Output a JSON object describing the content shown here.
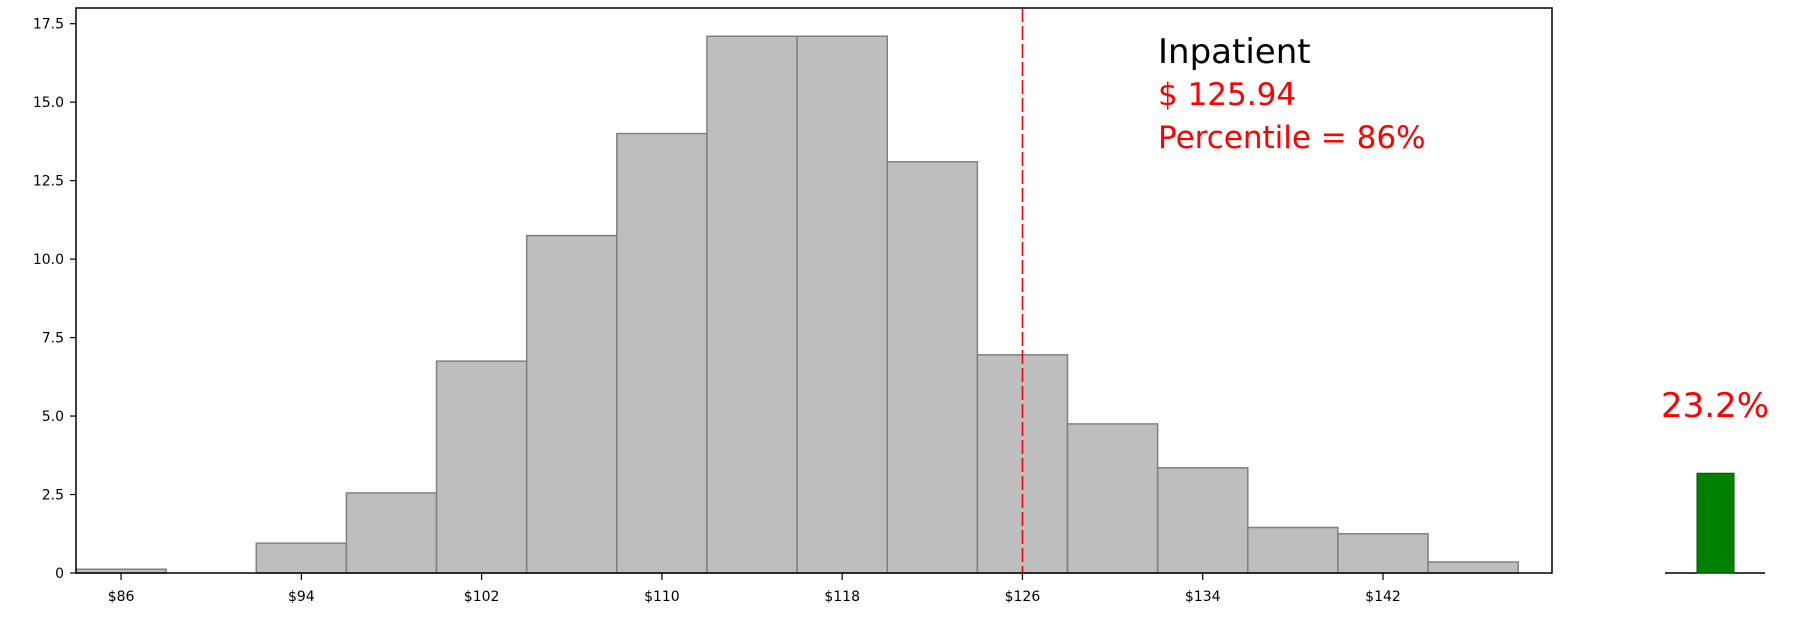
{
  "chart_data": [
    {
      "type": "bar",
      "chart": "histogram",
      "bins": [
        {
          "x0": 84,
          "x1": 88,
          "value": 0.12
        },
        {
          "x0": 88,
          "x1": 92,
          "value": 0
        },
        {
          "x0": 92,
          "x1": 96,
          "value": 0.95
        },
        {
          "x0": 96,
          "x1": 100,
          "value": 2.55
        },
        {
          "x0": 100,
          "x1": 104,
          "value": 6.75
        },
        {
          "x0": 104,
          "x1": 108,
          "value": 10.75
        },
        {
          "x0": 108,
          "x1": 112,
          "value": 14.0
        },
        {
          "x0": 112,
          "x1": 116,
          "value": 17.1
        },
        {
          "x0": 116,
          "x1": 120,
          "value": 17.1
        },
        {
          "x0": 120,
          "x1": 124,
          "value": 13.1
        },
        {
          "x0": 124,
          "x1": 128,
          "value": 6.95
        },
        {
          "x0": 128,
          "x1": 132,
          "value": 4.75
        },
        {
          "x0": 132,
          "x1": 136,
          "value": 3.35
        },
        {
          "x0": 136,
          "x1": 140,
          "value": 1.45
        },
        {
          "x0": 140,
          "x1": 144,
          "value": 1.25
        },
        {
          "x0": 144,
          "x1": 148,
          "value": 0.35
        }
      ],
      "xlim": [
        84,
        149.5
      ],
      "ylim": [
        0,
        18
      ],
      "x_ticks": [
        86,
        94,
        102,
        110,
        118,
        126,
        134,
        142
      ],
      "x_tick_labels": [
        "$86",
        "$94",
        "$102",
        "$110",
        "$118",
        "$126",
        "$134",
        "$142"
      ],
      "y_ticks": [
        0,
        2.5,
        5,
        7.5,
        10,
        12.5,
        15,
        17.5
      ],
      "y_tick_labels": [
        "0",
        "2.5",
        "5.0",
        "7.5",
        "10.0",
        "12.5",
        "15.0",
        "17.5"
      ],
      "marker_line": {
        "x": 126,
        "color": "#ff0000",
        "style": "dashed"
      },
      "annotation": {
        "title": "Inpatient",
        "value": "$ 125.94",
        "percentile": "Percentile = 86%"
      },
      "grid": false,
      "bar_fill": "#bebebe",
      "bar_stroke": "#808080"
    },
    {
      "type": "bar",
      "values": [
        23.2
      ],
      "value_label": "23.2%",
      "ylim": [
        0,
        50
      ],
      "bar_color": "#008000",
      "label_color": "#ff0000"
    }
  ]
}
